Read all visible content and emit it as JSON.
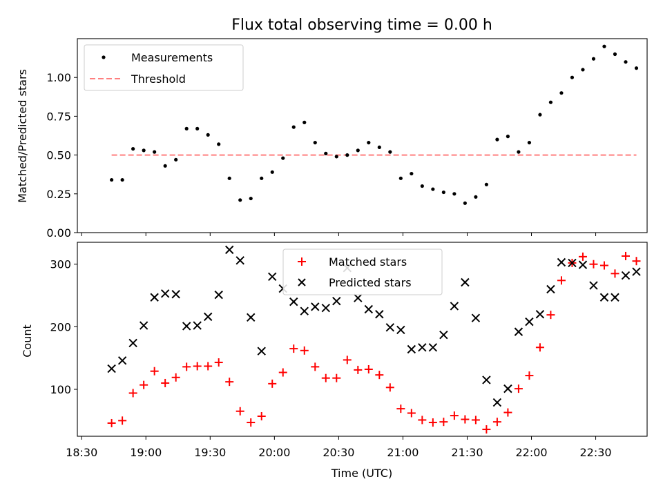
{
  "chart_data": [
    {
      "type": "scatter",
      "title": "Flux total observing time = 0.00 h",
      "xlabel": "",
      "ylabel": "Matched/Predicted stars",
      "xlim": [
        "18:28",
        "22:54"
      ],
      "ylim": [
        0.0,
        1.25
      ],
      "yticks": [
        "0.00",
        "0.25",
        "0.50",
        "0.75",
        "1.00"
      ],
      "legend": {
        "position": "top-left",
        "entries": [
          "Measurements",
          "Threshold"
        ]
      },
      "series": [
        {
          "name": "Measurements",
          "marker": "dot",
          "color": "#000000",
          "points": [
            [
              "18:44",
              0.34
            ],
            [
              "18:49",
              0.34
            ],
            [
              "18:54",
              0.54
            ],
            [
              "18:59",
              0.53
            ],
            [
              "19:04",
              0.52
            ],
            [
              "19:09",
              0.43
            ],
            [
              "19:14",
              0.47
            ],
            [
              "19:19",
              0.67
            ],
            [
              "19:24",
              0.67
            ],
            [
              "19:29",
              0.63
            ],
            [
              "19:34",
              0.57
            ],
            [
              "19:39",
              0.35
            ],
            [
              "19:44",
              0.21
            ],
            [
              "19:49",
              0.22
            ],
            [
              "19:54",
              0.35
            ],
            [
              "19:59",
              0.39
            ],
            [
              "20:04",
              0.48
            ],
            [
              "20:09",
              0.68
            ],
            [
              "20:14",
              0.71
            ],
            [
              "20:19",
              0.58
            ],
            [
              "20:24",
              0.51
            ],
            [
              "20:29",
              0.49
            ],
            [
              "20:34",
              0.5
            ],
            [
              "20:39",
              0.53
            ],
            [
              "20:44",
              0.58
            ],
            [
              "20:49",
              0.55
            ],
            [
              "20:54",
              0.52
            ],
            [
              "20:59",
              0.35
            ],
            [
              "21:04",
              0.38
            ],
            [
              "21:09",
              0.3
            ],
            [
              "21:14",
              0.28
            ],
            [
              "21:19",
              0.26
            ],
            [
              "21:24",
              0.25
            ],
            [
              "21:29",
              0.19
            ],
            [
              "21:34",
              0.23
            ],
            [
              "21:39",
              0.31
            ],
            [
              "21:44",
              0.6
            ],
            [
              "21:49",
              0.62
            ],
            [
              "21:54",
              0.52
            ],
            [
              "21:59",
              0.58
            ],
            [
              "22:04",
              0.76
            ],
            [
              "22:09",
              0.84
            ],
            [
              "22:14",
              0.9
            ],
            [
              "22:19",
              1.0
            ],
            [
              "22:24",
              1.05
            ],
            [
              "22:29",
              1.12
            ],
            [
              "22:34",
              1.2
            ],
            [
              "22:39",
              1.15
            ],
            [
              "22:44",
              1.1
            ],
            [
              "22:49",
              1.06
            ]
          ]
        },
        {
          "name": "Threshold",
          "marker": "dashed-line",
          "color": "#ff7f7f",
          "points": [
            [
              "18:44",
              0.5
            ],
            [
              "22:49",
              0.5
            ]
          ]
        }
      ]
    },
    {
      "type": "scatter",
      "title": "",
      "xlabel": "Time (UTC)",
      "ylabel": "Count",
      "xlim": [
        "18:28",
        "22:54"
      ],
      "ylim": [
        25,
        335
      ],
      "yticks": [
        "100",
        "200",
        "300"
      ],
      "xticks": [
        "18:30",
        "19:00",
        "19:30",
        "20:00",
        "20:30",
        "21:00",
        "21:30",
        "22:00",
        "22:30"
      ],
      "legend": {
        "position": "top-center",
        "entries": [
          "Matched stars",
          "Predicted stars"
        ]
      },
      "series": [
        {
          "name": "Matched stars",
          "marker": "plus",
          "color": "#ff0000",
          "points": [
            [
              "18:44",
              46
            ],
            [
              "18:49",
              50
            ],
            [
              "18:54",
              94
            ],
            [
              "18:59",
              107
            ],
            [
              "19:04",
              129
            ],
            [
              "19:09",
              110
            ],
            [
              "19:14",
              119
            ],
            [
              "19:19",
              136
            ],
            [
              "19:24",
              137
            ],
            [
              "19:29",
              137
            ],
            [
              "19:34",
              143
            ],
            [
              "19:39",
              112
            ],
            [
              "19:44",
              65
            ],
            [
              "19:49",
              47
            ],
            [
              "19:54",
              57
            ],
            [
              "19:59",
              109
            ],
            [
              "20:04",
              127
            ],
            [
              "20:09",
              165
            ],
            [
              "20:14",
              162
            ],
            [
              "20:19",
              136
            ],
            [
              "20:24",
              118
            ],
            [
              "20:29",
              118
            ],
            [
              "20:34",
              147
            ],
            [
              "20:39",
              131
            ],
            [
              "20:44",
              132
            ],
            [
              "20:49",
              123
            ],
            [
              "20:54",
              103
            ],
            [
              "20:59",
              69
            ],
            [
              "21:04",
              62
            ],
            [
              "21:09",
              51
            ],
            [
              "21:14",
              47
            ],
            [
              "21:19",
              48
            ],
            [
              "21:24",
              58
            ],
            [
              "21:29",
              52
            ],
            [
              "21:34",
              51
            ],
            [
              "21:39",
              36
            ],
            [
              "21:44",
              48
            ],
            [
              "21:49",
              63
            ],
            [
              "21:54",
              101
            ],
            [
              "21:59",
              122
            ],
            [
              "22:04",
              167
            ],
            [
              "22:09",
              219
            ],
            [
              "22:14",
              274
            ],
            [
              "22:19",
              302
            ],
            [
              "22:24",
              312
            ],
            [
              "22:29",
              300
            ],
            [
              "22:34",
              298
            ],
            [
              "22:39",
              285
            ],
            [
              "22:44",
              313
            ],
            [
              "22:49",
              305
            ]
          ]
        },
        {
          "name": "Predicted stars",
          "marker": "x",
          "color": "#000000",
          "points": [
            [
              "18:44",
              133
            ],
            [
              "18:49",
              146
            ],
            [
              "18:54",
              174
            ],
            [
              "18:59",
              202
            ],
            [
              "19:04",
              247
            ],
            [
              "19:09",
              253
            ],
            [
              "19:14",
              252
            ],
            [
              "19:19",
              201
            ],
            [
              "19:24",
              202
            ],
            [
              "19:29",
              216
            ],
            [
              "19:34",
              251
            ],
            [
              "19:39",
              323
            ],
            [
              "19:44",
              306
            ],
            [
              "19:49",
              215
            ],
            [
              "19:54",
              161
            ],
            [
              "19:59",
              280
            ],
            [
              "20:04",
              261
            ],
            [
              "20:09",
              240
            ],
            [
              "20:14",
              225
            ],
            [
              "20:19",
              232
            ],
            [
              "20:24",
              230
            ],
            [
              "20:29",
              241
            ],
            [
              "20:34",
              294
            ],
            [
              "20:39",
              246
            ],
            [
              "20:44",
              228
            ],
            [
              "20:49",
              220
            ],
            [
              "20:54",
              199
            ],
            [
              "20:59",
              195
            ],
            [
              "21:04",
              164
            ],
            [
              "21:09",
              167
            ],
            [
              "21:14",
              167
            ],
            [
              "21:19",
              187
            ],
            [
              "21:24",
              233
            ],
            [
              "21:29",
              271
            ],
            [
              "21:34",
              214
            ],
            [
              "21:39",
              115
            ],
            [
              "21:44",
              79
            ],
            [
              "21:49",
              101
            ],
            [
              "21:54",
              192
            ],
            [
              "21:59",
              208
            ],
            [
              "22:04",
              220
            ],
            [
              "22:09",
              260
            ],
            [
              "22:14",
              303
            ],
            [
              "22:19",
              302
            ],
            [
              "22:24",
              299
            ],
            [
              "22:29",
              266
            ],
            [
              "22:34",
              247
            ],
            [
              "22:39",
              247
            ],
            [
              "22:44",
              282
            ],
            [
              "22:49",
              288
            ]
          ]
        }
      ]
    }
  ]
}
